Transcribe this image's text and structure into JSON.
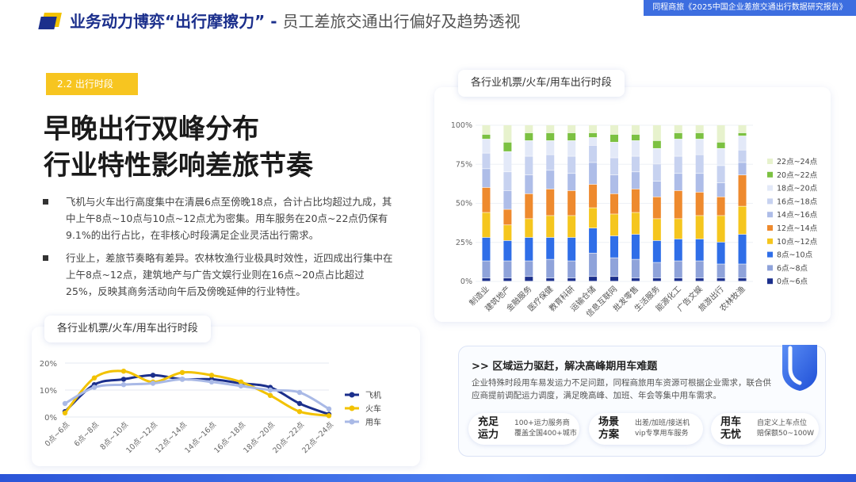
{
  "header": {
    "title_strong": "业务动力博弈“出行摩擦力”",
    "title_sep": " - ",
    "title_light": "员工差旅交通出行偏好及趋势透视",
    "source": "同程商旅《2025中国企业差旅交通出行数据研究报告》"
  },
  "section_tag": "2.2 出行时段",
  "headline": {
    "line1": "早晚出行双峰分布",
    "line2": "行业特性影响差旅节奏"
  },
  "bullets": [
    "飞机与火车出行高度集中在清晨6点至傍晚18点，合计占比均超过九成，其中上午8点~10点与10点~12点尤为密集。用车服务在20点~22点仍保有9.1%的出行占比，在非核心时段满足企业灵活出行需求。",
    "行业上，差旅节奏略有差异。农林牧渔行业极具时效性，近四成出行集中在上午8点~12点，建筑地产与广告文娱行业则在16点~20点占比超过25%，反映其商务活动向午后及傍晚延伸的行业特性。"
  ],
  "colors": {
    "accent_blue": "#1b2f8c",
    "accent_yellow": "#f7c520",
    "plane": "#1b2f8c",
    "train": "#f2c200",
    "car": "#a9b9e6"
  },
  "region": {
    "title": ">> 区域运力驱赶，解决高峰期用车难题",
    "desc": "企业特殊时段用车易发运力不足问题，同程商旅用车资源可根据企业需求，联合供应商提前调配运力调度，满足晚高峰、加班、年会等集中用车需求。",
    "pills": [
      {
        "title1": "充足",
        "title2": "运力",
        "desc1": "100+运力服务商",
        "desc2": "覆盖全国400+城市"
      },
      {
        "title1": "场景",
        "title2": "方案",
        "desc1": "出差/加班/接送机",
        "desc2": "vip专享用车服务"
      },
      {
        "title1": "用车",
        "title2": "无忧",
        "desc1": "自定义上车点位",
        "desc2": "赔保额50~100W"
      }
    ]
  },
  "chart_data": [
    {
      "type": "line",
      "title": "各行业机票/火车/用车出行时段",
      "categories": [
        "0点~6点",
        "6点~8点",
        "8点~10点",
        "10点~12点",
        "12点~14点",
        "14点~16点",
        "16点~18点",
        "18点~20点",
        "20点~22点",
        "22点~24点"
      ],
      "y_ticks": [
        "0%",
        "10%",
        "20%"
      ],
      "ylim": [
        0,
        20
      ],
      "series": [
        {
          "name": "飞机",
          "values": [
            2,
            12,
            14,
            15.5,
            14,
            14,
            12.5,
            11,
            5,
            1
          ]
        },
        {
          "name": "火车",
          "values": [
            1.5,
            14.5,
            17,
            13,
            16.5,
            15.5,
            13,
            8,
            2,
            0.5
          ]
        },
        {
          "name": "用车",
          "values": [
            5,
            11,
            12,
            12.5,
            14,
            13,
            11.5,
            10,
            9.1,
            3
          ]
        }
      ],
      "legend_position": "right"
    },
    {
      "type": "bar",
      "stacked": true,
      "title": "各行业机票/火车/用车出行时段",
      "categories": [
        "制造业",
        "建筑地产",
        "金融服务",
        "医疗保健",
        "教育科研",
        "运输仓储",
        "信息互联网",
        "批发零售",
        "生活服务",
        "能源化工",
        "广告文娱",
        "旅游出行",
        "农林牧渔"
      ],
      "y_ticks": [
        "0%",
        "25%",
        "50%",
        "75%",
        "100%"
      ],
      "ylim": [
        0,
        100
      ],
      "series": [
        {
          "name": "0点~6点",
          "color": "#1b2f8c",
          "values": [
            2,
            2,
            3,
            2,
            2,
            3,
            3,
            2,
            2,
            2,
            2,
            2,
            2
          ]
        },
        {
          "name": "6点~8点",
          "color": "#8fa3da",
          "values": [
            11,
            11,
            10,
            12,
            11,
            15,
            12,
            12,
            10,
            11,
            11,
            9,
            9
          ]
        },
        {
          "name": "8点~10点",
          "color": "#2f6ee8",
          "values": [
            15,
            13,
            15,
            14,
            15,
            16,
            14,
            16,
            14,
            14,
            14,
            14,
            19
          ]
        },
        {
          "name": "10点~12点",
          "color": "#f5c61e",
          "values": [
            16,
            10,
            12,
            14,
            14,
            13,
            14,
            14,
            14,
            13,
            15,
            17,
            18
          ]
        },
        {
          "name": "12点~14点",
          "color": "#ee8a2e",
          "values": [
            16,
            10,
            16,
            17,
            16,
            15,
            13,
            15,
            14,
            18,
            15,
            12,
            20
          ]
        },
        {
          "name": "14点~16点",
          "color": "#aebde8",
          "values": [
            12,
            12,
            12,
            12,
            11,
            14,
            12,
            11,
            10,
            11,
            12,
            9,
            8
          ]
        },
        {
          "name": "16点~18点",
          "color": "#c7d2f0",
          "values": [
            10,
            12,
            12,
            10,
            11,
            11,
            11,
            10,
            11,
            11,
            12,
            11,
            8
          ]
        },
        {
          "name": "18点~20点",
          "color": "#e3e9f8",
          "values": [
            9,
            13,
            10,
            9,
            10,
            5,
            10,
            10,
            10,
            11,
            10,
            11,
            9
          ]
        },
        {
          "name": "20点~22点",
          "color": "#7cc142",
          "values": [
            3,
            6,
            5,
            5,
            5,
            3,
            5,
            4,
            5,
            4,
            4,
            4,
            2
          ]
        },
        {
          "name": "22点~24点",
          "color": "#e7f2cd",
          "values": [
            6,
            11,
            5,
            5,
            5,
            5,
            6,
            6,
            10,
            5,
            5,
            11,
            5
          ]
        }
      ],
      "legend_position": "right"
    }
  ]
}
